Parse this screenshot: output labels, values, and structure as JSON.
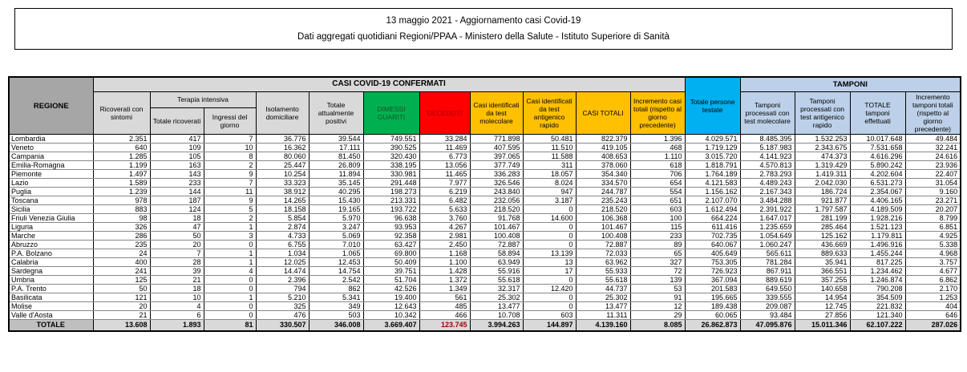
{
  "header": {
    "title": "13 maggio 2021 - Aggiornamento casi Covid-19",
    "subtitle": "Dati aggregati quotidiani Regioni/PPAA - Ministero della Salute - Istituto Superiore di Sanità"
  },
  "colors": {
    "green": "#00B050",
    "red": "#FF0000",
    "red_text": "#9C0006",
    "amber": "#FFC000",
    "cyan": "#00B0F0",
    "light_blue": "#BDD0E9",
    "gray_header": "#A6A6A6",
    "gray_light": "#D9D9D9",
    "gray_total": "#BFBFBF"
  },
  "table": {
    "corner_header": "REGIONE",
    "group_headers": {
      "casi": "CASI COVID-19 CONFERMATI",
      "terapia": "Terapia intensiva",
      "testate": "Totale persone testate",
      "tamponi": "TAMPONI"
    },
    "column_headers": {
      "ricoverati": "Ricoverati con sintomi",
      "terapia_totale": "Totale ricoverati",
      "terapia_ingressi": "Ingressi del giorno",
      "isolamento": "Isolamento domiciliare",
      "positivi": "Totale attualmente positivi",
      "dimessi": "DIMESSI GUARITI",
      "deceduti": "DECEDUTI",
      "casi_molecolare": "Casi identificati da test molecolare",
      "casi_antigenico": "Casi identificati da test antigenico rapido",
      "casi_totali": "CASI TOTALI",
      "incremento_casi": "Incremento casi totali (rispetto al giorno precedente)",
      "tamponi_molecolare": "Tamponi processati con test molecolare",
      "tamponi_antigenico": "Tamponi processati con test antigenico rapido",
      "tamponi_totale": "TOTALE tamponi effettuati",
      "incremento_tamponi": "Incremento tamponi totali (rispetto al giorno precedente)"
    },
    "rows": [
      {
        "region": "Lombardia",
        "values": [
          "2.351",
          "417",
          "7",
          "36.776",
          "39.544",
          "749.551",
          "33.284",
          "771.898",
          "50.481",
          "822.379",
          "1.396",
          "4.029.571",
          "8.485.395",
          "1.532.253",
          "10.017.648",
          "49.484"
        ]
      },
      {
        "region": "Veneto",
        "values": [
          "640",
          "109",
          "10",
          "16.362",
          "17.111",
          "390.525",
          "11.469",
          "407.595",
          "11.510",
          "419.105",
          "468",
          "1.719.129",
          "5.187.983",
          "2.343.675",
          "7.531.658",
          "32.241"
        ]
      },
      {
        "region": "Campania",
        "values": [
          "1.285",
          "105",
          "8",
          "80.060",
          "81.450",
          "320.430",
          "6.773",
          "397.065",
          "11.588",
          "408.653",
          "1.110",
          "3.015.720",
          "4.141.923",
          "474.373",
          "4.616.296",
          "24.616"
        ]
      },
      {
        "region": "Emilia-Romagna",
        "values": [
          "1.199",
          "163",
          "2",
          "25.447",
          "26.809",
          "338.195",
          "13.056",
          "377.749",
          "311",
          "378.060",
          "618",
          "1.818.791",
          "4.570.813",
          "1.319.429",
          "5.890.242",
          "23.936"
        ]
      },
      {
        "region": "Piemonte",
        "values": [
          "1.497",
          "143",
          "9",
          "10.254",
          "11.894",
          "330.981",
          "11.465",
          "336.283",
          "18.057",
          "354.340",
          "706",
          "1.764.189",
          "2.783.293",
          "1.419.311",
          "4.202.604",
          "22.407"
        ]
      },
      {
        "region": "Lazio",
        "values": [
          "1.589",
          "233",
          "7",
          "33.323",
          "35.145",
          "291.448",
          "7.977",
          "326.546",
          "8.024",
          "334.570",
          "654",
          "4.121.583",
          "4.489.243",
          "2.042.030",
          "6.531.273",
          "31.054"
        ]
      },
      {
        "region": "Puglia",
        "values": [
          "1.239",
          "144",
          "11",
          "38.912",
          "40.295",
          "198.273",
          "6.219",
          "243.840",
          "947",
          "244.787",
          "554",
          "1.156.162",
          "2.167.343",
          "186.724",
          "2.354.067",
          "9.160"
        ]
      },
      {
        "region": "Toscana",
        "values": [
          "978",
          "187",
          "9",
          "14.265",
          "15.430",
          "213.331",
          "6.482",
          "232.056",
          "3.187",
          "235.243",
          "651",
          "2.107.070",
          "3.484.288",
          "921.877",
          "4.406.165",
          "23.271"
        ]
      },
      {
        "region": "Sicilia",
        "values": [
          "883",
          "124",
          "5",
          "18.158",
          "19.165",
          "193.722",
          "5.633",
          "218.520",
          "0",
          "218.520",
          "603",
          "1.612.494",
          "2.391.922",
          "1.797.587",
          "4.189.509",
          "20.207"
        ]
      },
      {
        "region": "Friuli Venezia Giulia",
        "values": [
          "98",
          "18",
          "2",
          "5.854",
          "5.970",
          "96.638",
          "3.760",
          "91.768",
          "14.600",
          "106.368",
          "100",
          "664.224",
          "1.647.017",
          "281.199",
          "1.928.216",
          "8.799"
        ]
      },
      {
        "region": "Liguria",
        "values": [
          "326",
          "47",
          "1",
          "2.874",
          "3.247",
          "93.953",
          "4.267",
          "101.467",
          "0",
          "101.467",
          "115",
          "611.416",
          "1.235.659",
          "285.464",
          "1.521.123",
          "6.851"
        ]
      },
      {
        "region": "Marche",
        "values": [
          "286",
          "50",
          "3",
          "4.733",
          "5.069",
          "92.358",
          "2.981",
          "100.408",
          "0",
          "100.408",
          "233",
          "702.735",
          "1.054.649",
          "125.162",
          "1.179.811",
          "4.925"
        ]
      },
      {
        "region": "Abruzzo",
        "values": [
          "235",
          "20",
          "0",
          "6.755",
          "7.010",
          "63.427",
          "2.450",
          "72.887",
          "0",
          "72.887",
          "89",
          "640.067",
          "1.060.247",
          "436.669",
          "1.496.916",
          "5.338"
        ]
      },
      {
        "region": "P.A. Bolzano",
        "values": [
          "24",
          "7",
          "1",
          "1.034",
          "1.065",
          "69.800",
          "1.168",
          "58.894",
          "13.139",
          "72.033",
          "65",
          "405.649",
          "565.611",
          "889.633",
          "1.455.244",
          "4.968"
        ]
      },
      {
        "region": "Calabria",
        "values": [
          "400",
          "28",
          "1",
          "12.025",
          "12.453",
          "50.409",
          "1.100",
          "63.949",
          "13",
          "63.962",
          "327",
          "753.305",
          "781.284",
          "35.941",
          "817.225",
          "3.757"
        ]
      },
      {
        "region": "Sardegna",
        "values": [
          "241",
          "39",
          "4",
          "14.474",
          "14.754",
          "39.751",
          "1.428",
          "55.916",
          "17",
          "55.933",
          "72",
          "726.923",
          "867.911",
          "366.551",
          "1.234.462",
          "4.677"
        ]
      },
      {
        "region": "Umbria",
        "values": [
          "125",
          "21",
          "0",
          "2.396",
          "2.542",
          "51.704",
          "1.372",
          "55.618",
          "0",
          "55.618",
          "139",
          "367.094",
          "889.619",
          "357.255",
          "1.246.874",
          "6.862"
        ]
      },
      {
        "region": "P.A. Trento",
        "values": [
          "50",
          "18",
          "0",
          "794",
          "862",
          "42.526",
          "1.349",
          "32.317",
          "12.420",
          "44.737",
          "53",
          "201.583",
          "649.550",
          "140.658",
          "790.208",
          "2.170"
        ]
      },
      {
        "region": "Basilicata",
        "values": [
          "121",
          "10",
          "1",
          "5.210",
          "5.341",
          "19.400",
          "561",
          "25.302",
          "0",
          "25.302",
          "91",
          "195.665",
          "339.555",
          "14.954",
          "354.509",
          "1.253"
        ]
      },
      {
        "region": "Molise",
        "values": [
          "20",
          "4",
          "0",
          "325",
          "349",
          "12.643",
          "485",
          "13.477",
          "0",
          "13.477",
          "12",
          "189.438",
          "209.087",
          "12.745",
          "221.832",
          "404"
        ]
      },
      {
        "region": "Valle d'Aosta",
        "values": [
          "21",
          "6",
          "0",
          "476",
          "503",
          "10.342",
          "466",
          "10.708",
          "603",
          "11.311",
          "29",
          "60.065",
          "93.484",
          "27.856",
          "121.340",
          "646"
        ]
      }
    ],
    "totale": {
      "region": "TOTALE",
      "values": [
        "13.608",
        "1.893",
        "81",
        "330.507",
        "346.008",
        "3.669.407",
        "123.745",
        "3.994.263",
        "144.897",
        "4.139.160",
        "8.085",
        "26.862.873",
        "47.095.876",
        "15.011.346",
        "62.107.222",
        "287.026"
      ]
    }
  }
}
